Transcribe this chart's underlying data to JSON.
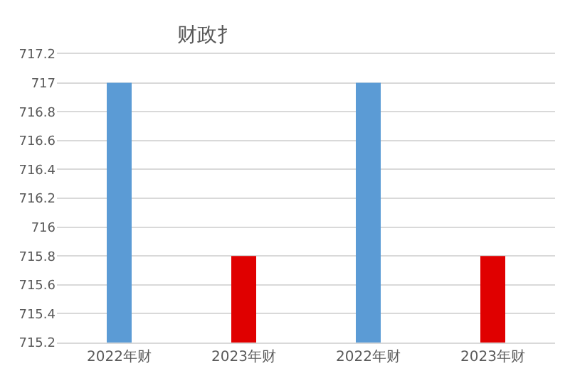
{
  "chart_data": {
    "type": "bar",
    "title": "财政扌",
    "categories": [
      "2022年财",
      "2023年财",
      "2022年财",
      "2023年财"
    ],
    "values": [
      717,
      715.8,
      717,
      715.8
    ],
    "colors": [
      "#5b9bd5",
      "#e00000",
      "#5b9bd5",
      "#e00000"
    ],
    "ylim": [
      715.2,
      717.2
    ],
    "yticks": [
      715.2,
      715.4,
      715.6,
      715.8,
      716,
      716.2,
      716.4,
      716.6,
      716.8,
      717,
      717.2
    ],
    "grid": "y"
  }
}
